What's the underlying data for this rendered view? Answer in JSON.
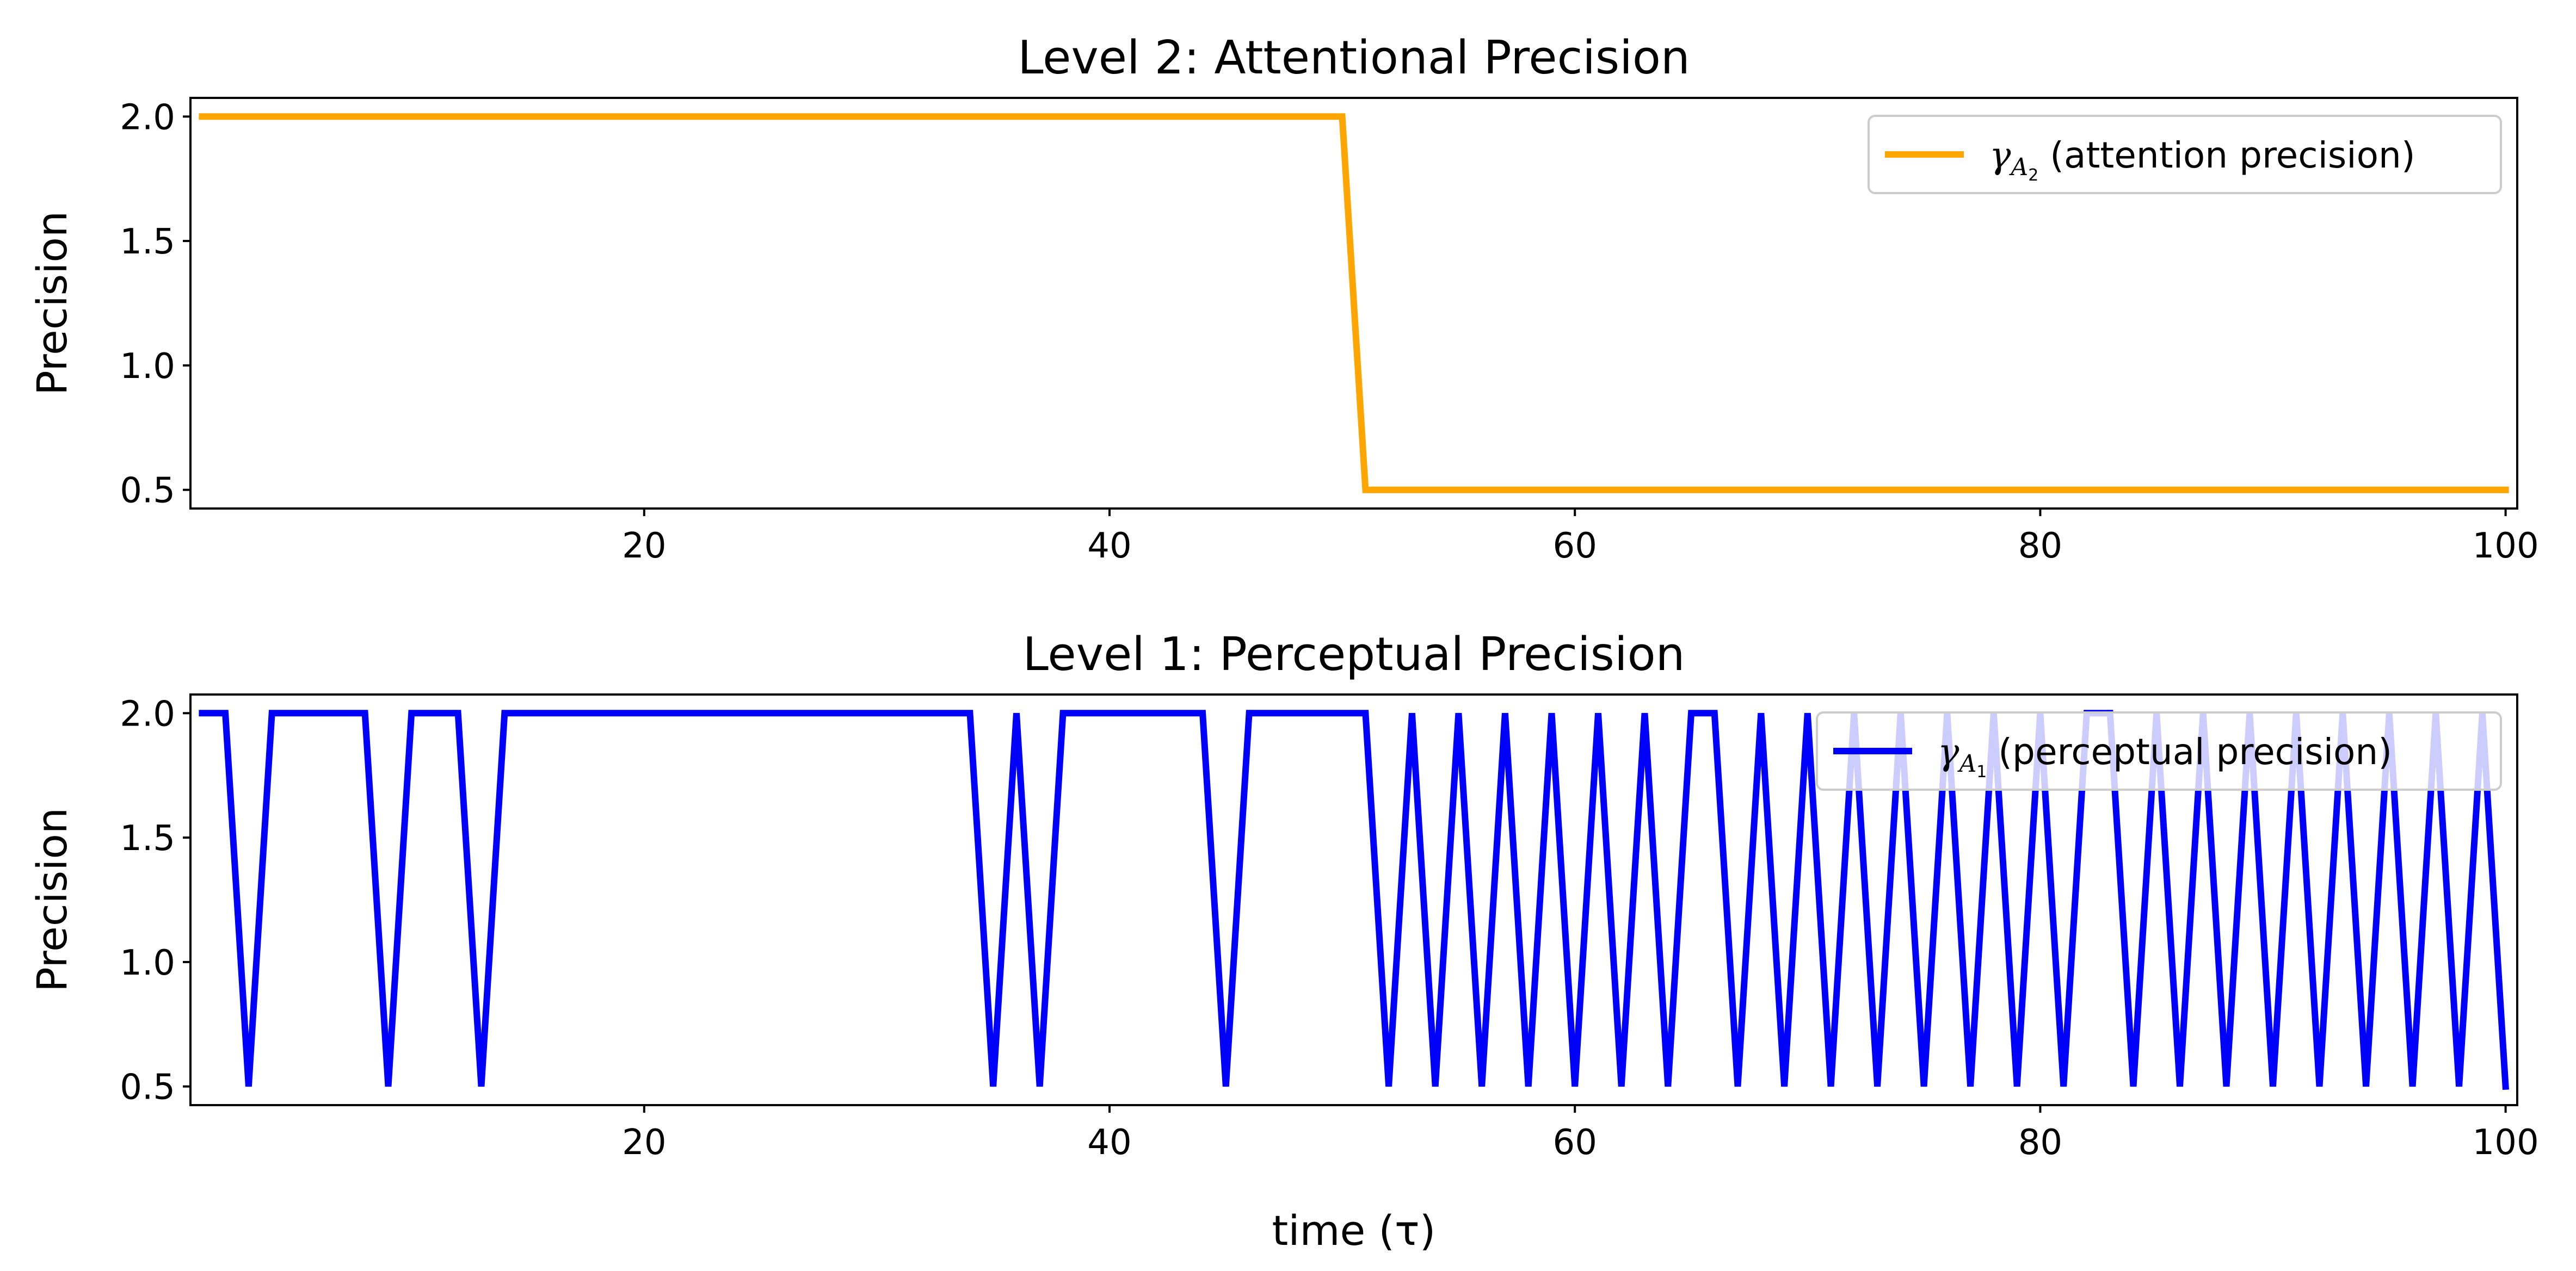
{
  "chart_data": [
    {
      "type": "line",
      "title": "Level 2: Attentional Precision",
      "xlabel": "",
      "ylabel": "Precision",
      "xlim": [
        0.5,
        100.5
      ],
      "ylim": [
        0.425,
        2.075
      ],
      "xticks": [
        20,
        40,
        60,
        80,
        100
      ],
      "yticks": [
        0.5,
        1.0,
        1.5,
        2.0
      ],
      "xtick_labels": [
        "20",
        "40",
        "60",
        "80",
        "100"
      ],
      "ytick_labels": [
        "0.5",
        "1.0",
        "1.5",
        "2.0"
      ],
      "grid": false,
      "legend": "top-right",
      "legend_symbol": "γ",
      "legend_subscript": "A",
      "legend_subsub": "2",
      "legend_suffix": " (attention precision)",
      "series": [
        {
          "name": "γA2 (attention precision)",
          "color": "#FFA500",
          "x": [
            1,
            2,
            3,
            4,
            5,
            6,
            7,
            8,
            9,
            10,
            11,
            12,
            13,
            14,
            15,
            16,
            17,
            18,
            19,
            20,
            21,
            22,
            23,
            24,
            25,
            26,
            27,
            28,
            29,
            30,
            31,
            32,
            33,
            34,
            35,
            36,
            37,
            38,
            39,
            40,
            41,
            42,
            43,
            44,
            45,
            46,
            47,
            48,
            49,
            50,
            51,
            52,
            53,
            54,
            55,
            56,
            57,
            58,
            59,
            60,
            61,
            62,
            63,
            64,
            65,
            66,
            67,
            68,
            69,
            70,
            71,
            72,
            73,
            74,
            75,
            76,
            77,
            78,
            79,
            80,
            81,
            82,
            83,
            84,
            85,
            86,
            87,
            88,
            89,
            90,
            91,
            92,
            93,
            94,
            95,
            96,
            97,
            98,
            99,
            100
          ],
          "y": [
            2.0,
            2.0,
            2.0,
            2.0,
            2.0,
            2.0,
            2.0,
            2.0,
            2.0,
            2.0,
            2.0,
            2.0,
            2.0,
            2.0,
            2.0,
            2.0,
            2.0,
            2.0,
            2.0,
            2.0,
            2.0,
            2.0,
            2.0,
            2.0,
            2.0,
            2.0,
            2.0,
            2.0,
            2.0,
            2.0,
            2.0,
            2.0,
            2.0,
            2.0,
            2.0,
            2.0,
            2.0,
            2.0,
            2.0,
            2.0,
            2.0,
            2.0,
            2.0,
            2.0,
            2.0,
            2.0,
            2.0,
            2.0,
            2.0,
            2.0,
            0.5,
            0.5,
            0.5,
            0.5,
            0.5,
            0.5,
            0.5,
            0.5,
            0.5,
            0.5,
            0.5,
            0.5,
            0.5,
            0.5,
            0.5,
            0.5,
            0.5,
            0.5,
            0.5,
            0.5,
            0.5,
            0.5,
            0.5,
            0.5,
            0.5,
            0.5,
            0.5,
            0.5,
            0.5,
            0.5,
            0.5,
            0.5,
            0.5,
            0.5,
            0.5,
            0.5,
            0.5,
            0.5,
            0.5,
            0.5,
            0.5,
            0.5,
            0.5,
            0.5,
            0.5,
            0.5,
            0.5,
            0.5,
            0.5,
            0.5
          ]
        }
      ]
    },
    {
      "type": "line",
      "title": "Level 1: Perceptual Precision",
      "xlabel": "time (τ)",
      "ylabel": "Precision",
      "xlim": [
        0.5,
        100.5
      ],
      "ylim": [
        0.425,
        2.075
      ],
      "xticks": [
        20,
        40,
        60,
        80,
        100
      ],
      "yticks": [
        0.5,
        1.0,
        1.5,
        2.0
      ],
      "xtick_labels": [
        "20",
        "40",
        "60",
        "80",
        "100"
      ],
      "ytick_labels": [
        "0.5",
        "1.0",
        "1.5",
        "2.0"
      ],
      "grid": false,
      "legend": "top-right",
      "legend_symbol": "γ",
      "legend_subscript": "A",
      "legend_subsub": "1",
      "legend_suffix": " (perceptual precision)",
      "series": [
        {
          "name": "γA1 (perceptual precision)",
          "color": "#0000FF",
          "x": [
            1,
            2,
            3,
            4,
            5,
            6,
            7,
            8,
            9,
            10,
            11,
            12,
            13,
            14,
            15,
            16,
            17,
            18,
            19,
            20,
            21,
            22,
            23,
            24,
            25,
            26,
            27,
            28,
            29,
            30,
            31,
            32,
            33,
            34,
            35,
            36,
            37,
            38,
            39,
            40,
            41,
            42,
            43,
            44,
            45,
            46,
            47,
            48,
            49,
            50,
            51,
            52,
            53,
            54,
            55,
            56,
            57,
            58,
            59,
            60,
            61,
            62,
            63,
            64,
            65,
            66,
            67,
            68,
            69,
            70,
            71,
            72,
            73,
            74,
            75,
            76,
            77,
            78,
            79,
            80,
            81,
            82,
            83,
            84,
            85,
            86,
            87,
            88,
            89,
            90,
            91,
            92,
            93,
            94,
            95,
            96,
            97,
            98,
            99,
            100
          ],
          "y": [
            2.0,
            2.0,
            0.5,
            2.0,
            2.0,
            2.0,
            2.0,
            2.0,
            0.5,
            2.0,
            2.0,
            2.0,
            0.5,
            2.0,
            2.0,
            2.0,
            2.0,
            2.0,
            2.0,
            2.0,
            2.0,
            2.0,
            2.0,
            2.0,
            2.0,
            2.0,
            2.0,
            2.0,
            2.0,
            2.0,
            2.0,
            2.0,
            2.0,
            2.0,
            0.5,
            2.0,
            0.5,
            2.0,
            2.0,
            2.0,
            2.0,
            2.0,
            2.0,
            2.0,
            0.5,
            2.0,
            2.0,
            2.0,
            2.0,
            2.0,
            2.0,
            0.5,
            2.0,
            0.5,
            2.0,
            0.5,
            2.0,
            0.5,
            2.0,
            0.5,
            2.0,
            0.5,
            2.0,
            0.5,
            2.0,
            2.0,
            0.5,
            2.0,
            0.5,
            2.0,
            0.5,
            2.0,
            0.5,
            2.0,
            0.5,
            2.0,
            0.5,
            2.0,
            0.5,
            2.0,
            0.5,
            2.0,
            2.0,
            0.5,
            2.0,
            0.5,
            2.0,
            0.5,
            2.0,
            0.5,
            2.0,
            0.5,
            2.0,
            0.5,
            2.0,
            0.5,
            2.0,
            0.5,
            2.0,
            0.5
          ]
        }
      ]
    }
  ]
}
